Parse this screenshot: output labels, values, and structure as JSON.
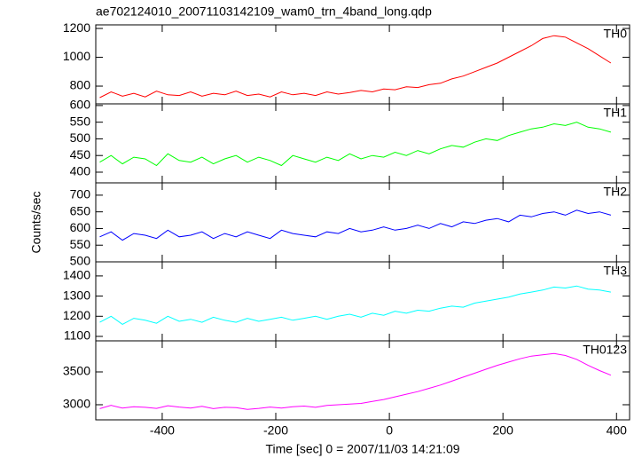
{
  "chart_data": [
    {
      "type": "line",
      "title": "ae702124010_20071103142109_wam0_trn_4band_long.qdp",
      "x": [
        -510,
        -490,
        -470,
        -450,
        -430,
        -410,
        -390,
        -370,
        -350,
        -330,
        -310,
        -290,
        -270,
        -250,
        -230,
        -210,
        -190,
        -170,
        -150,
        -130,
        -110,
        -90,
        -70,
        -50,
        -30,
        -10,
        10,
        30,
        50,
        70,
        90,
        110,
        130,
        150,
        170,
        190,
        210,
        230,
        250,
        270,
        290,
        310,
        330,
        350,
        370,
        390
      ],
      "series": [
        {
          "name": "TH0",
          "color": "#ff0000",
          "values": [
            720,
            760,
            730,
            750,
            725,
            765,
            740,
            735,
            760,
            730,
            750,
            740,
            765,
            735,
            745,
            725,
            760,
            740,
            750,
            735,
            760,
            745,
            755,
            770,
            760,
            780,
            775,
            795,
            790,
            810,
            820,
            850,
            870,
            900,
            930,
            960,
            1000,
            1040,
            1080,
            1130,
            1150,
            1140,
            1100,
            1060,
            1010,
            960
          ]
        }
      ],
      "xlim": [
        -517,
        423
      ],
      "xticks": [
        -400,
        -200,
        0,
        200,
        400
      ],
      "ylim": [
        677,
        1225
      ],
      "yticks": [
        800,
        1000,
        1200
      ]
    },
    {
      "type": "line",
      "x": [
        -510,
        -490,
        -470,
        -450,
        -430,
        -410,
        -390,
        -370,
        -350,
        -330,
        -310,
        -290,
        -270,
        -250,
        -230,
        -210,
        -190,
        -170,
        -150,
        -130,
        -110,
        -90,
        -70,
        -50,
        -30,
        -10,
        10,
        30,
        50,
        70,
        90,
        110,
        130,
        150,
        170,
        190,
        210,
        230,
        250,
        270,
        290,
        310,
        330,
        350,
        370,
        390
      ],
      "series": [
        {
          "name": "TH1",
          "color": "#00ff00",
          "values": [
            430,
            450,
            425,
            445,
            440,
            420,
            455,
            435,
            430,
            445,
            425,
            440,
            450,
            430,
            445,
            435,
            420,
            450,
            440,
            430,
            445,
            435,
            455,
            440,
            450,
            445,
            460,
            450,
            465,
            455,
            470,
            480,
            475,
            490,
            500,
            495,
            510,
            520,
            530,
            535,
            545,
            540,
            550,
            535,
            530,
            520
          ]
        }
      ],
      "xlim": [
        -517,
        423
      ],
      "xticks": [
        -400,
        -200,
        0,
        200,
        400
      ],
      "ylim": [
        368,
        605
      ],
      "yticks": [
        400,
        450,
        500,
        550,
        600
      ]
    },
    {
      "type": "line",
      "y_label": "Counts/sec",
      "x": [
        -510,
        -490,
        -470,
        -450,
        -430,
        -410,
        -390,
        -370,
        -350,
        -330,
        -310,
        -290,
        -270,
        -250,
        -230,
        -210,
        -190,
        -170,
        -150,
        -130,
        -110,
        -90,
        -70,
        -50,
        -30,
        -10,
        10,
        30,
        50,
        70,
        90,
        110,
        130,
        150,
        170,
        190,
        210,
        230,
        250,
        270,
        290,
        310,
        330,
        350,
        370,
        390
      ],
      "series": [
        {
          "name": "TH2",
          "color": "#0000ff",
          "values": [
            575,
            590,
            565,
            585,
            580,
            570,
            595,
            575,
            580,
            590,
            570,
            585,
            575,
            590,
            580,
            570,
            595,
            585,
            580,
            575,
            590,
            585,
            600,
            590,
            595,
            605,
            595,
            600,
            610,
            600,
            615,
            605,
            620,
            615,
            625,
            630,
            620,
            640,
            635,
            645,
            650,
            640,
            655,
            645,
            650,
            640
          ]
        }
      ],
      "xlim": [
        -517,
        423
      ],
      "xticks": [
        -400,
        -200,
        0,
        200,
        400
      ],
      "ylim": [
        500,
        737
      ],
      "yticks": [
        500,
        550,
        600,
        650,
        700
      ]
    },
    {
      "type": "line",
      "x": [
        -510,
        -490,
        -470,
        -450,
        -430,
        -410,
        -390,
        -370,
        -350,
        -330,
        -310,
        -290,
        -270,
        -250,
        -230,
        -210,
        -190,
        -170,
        -150,
        -130,
        -110,
        -90,
        -70,
        -50,
        -30,
        -10,
        10,
        30,
        50,
        70,
        90,
        110,
        130,
        150,
        170,
        190,
        210,
        230,
        250,
        270,
        290,
        310,
        330,
        350,
        370,
        390
      ],
      "series": [
        {
          "name": "TH3",
          "color": "#00ffff",
          "values": [
            1170,
            1200,
            1160,
            1190,
            1180,
            1165,
            1200,
            1175,
            1185,
            1170,
            1195,
            1180,
            1170,
            1190,
            1175,
            1185,
            1195,
            1180,
            1190,
            1200,
            1185,
            1200,
            1210,
            1195,
            1215,
            1205,
            1225,
            1215,
            1230,
            1225,
            1240,
            1250,
            1245,
            1265,
            1275,
            1285,
            1295,
            1310,
            1320,
            1330,
            1345,
            1340,
            1350,
            1335,
            1330,
            1320
          ]
        }
      ],
      "xlim": [
        -517,
        423
      ],
      "xticks": [
        -400,
        -200,
        0,
        200,
        400
      ],
      "ylim": [
        1078,
        1470
      ],
      "yticks": [
        1100,
        1200,
        1300,
        1400
      ]
    },
    {
      "type": "line",
      "x_label": "Time [sec] 0 = 2007/11/03 14:21:09",
      "x": [
        -510,
        -490,
        -470,
        -450,
        -430,
        -410,
        -390,
        -370,
        -350,
        -330,
        -310,
        -290,
        -270,
        -250,
        -230,
        -210,
        -190,
        -170,
        -150,
        -130,
        -110,
        -90,
        -70,
        -50,
        -30,
        -10,
        10,
        30,
        50,
        70,
        90,
        110,
        130,
        150,
        170,
        190,
        210,
        230,
        250,
        270,
        290,
        310,
        330,
        350,
        370,
        390
      ],
      "series": [
        {
          "name": "TH0123",
          "color": "#ff00ff",
          "values": [
            2940,
            2990,
            2950,
            2970,
            2960,
            2945,
            2985,
            2965,
            2950,
            2975,
            2940,
            2960,
            2955,
            2930,
            2945,
            2965,
            2950,
            2970,
            2980,
            2960,
            2990,
            3000,
            3010,
            3020,
            3050,
            3080,
            3120,
            3160,
            3200,
            3250,
            3300,
            3360,
            3420,
            3480,
            3540,
            3600,
            3650,
            3700,
            3740,
            3760,
            3780,
            3750,
            3690,
            3600,
            3520,
            3450
          ]
        }
      ],
      "xlim": [
        -517,
        423
      ],
      "xticks": [
        -400,
        -200,
        0,
        200,
        400
      ],
      "ylim": [
        2770,
        3973
      ],
      "yticks": [
        3000,
        3500
      ]
    }
  ]
}
